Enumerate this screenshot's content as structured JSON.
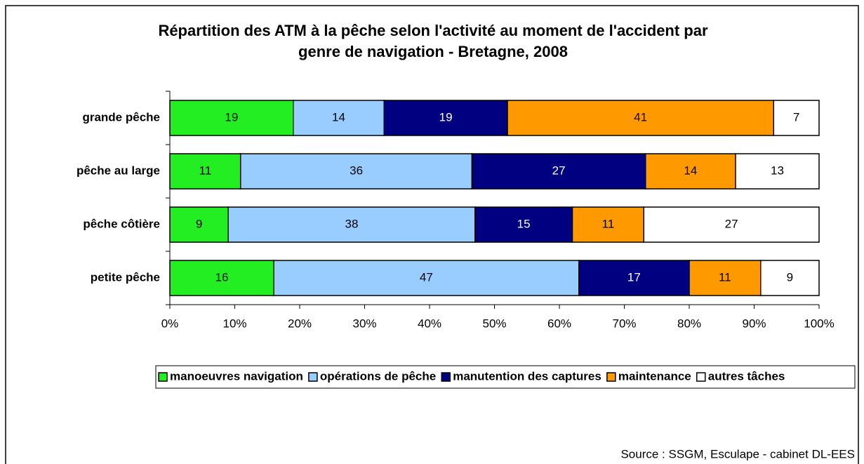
{
  "chart_data": {
    "type": "bar",
    "orientation": "horizontal",
    "stacking": "percent",
    "title": [
      "Répartition des ATM à la pêche selon l'activité au moment de l'accident par",
      "genre de navigation - Bretagne, 2008"
    ],
    "categories": [
      "grande pêche",
      "pêche au large",
      "pêche côtière",
      "petite pêche"
    ],
    "series": [
      {
        "name": "manoeuvres navigation",
        "color": "#22ee22",
        "values": [
          19,
          11,
          9,
          16
        ]
      },
      {
        "name": "opérations de pêche",
        "color": "#99ccff",
        "values": [
          14,
          36,
          38,
          47
        ]
      },
      {
        "name": "manutention des captures",
        "color": "#000080",
        "values": [
          19,
          27,
          15,
          17
        ]
      },
      {
        "name": "maintenance",
        "color": "#ff9900",
        "values": [
          41,
          14,
          11,
          11
        ]
      },
      {
        "name": "autres tâches",
        "color": "#ffffff",
        "values": [
          7,
          13,
          27,
          9
        ]
      }
    ],
    "xlim": [
      0,
      100
    ],
    "xticks": [
      {
        "value": 0,
        "label": "0%"
      },
      {
        "value": 10,
        "label": "10%"
      },
      {
        "value": 20,
        "label": "20%"
      },
      {
        "value": 30,
        "label": "30%"
      },
      {
        "value": 40,
        "label": "40%"
      },
      {
        "value": 50,
        "label": "50%"
      },
      {
        "value": 60,
        "label": "60%"
      },
      {
        "value": 70,
        "label": "70%"
      },
      {
        "value": 80,
        "label": "80%"
      },
      {
        "value": 90,
        "label": "90%"
      },
      {
        "value": 100,
        "label": "100%"
      }
    ],
    "legend": "bottom",
    "source": "Source : SSGM, Esculape - cabinet DL-EES"
  }
}
